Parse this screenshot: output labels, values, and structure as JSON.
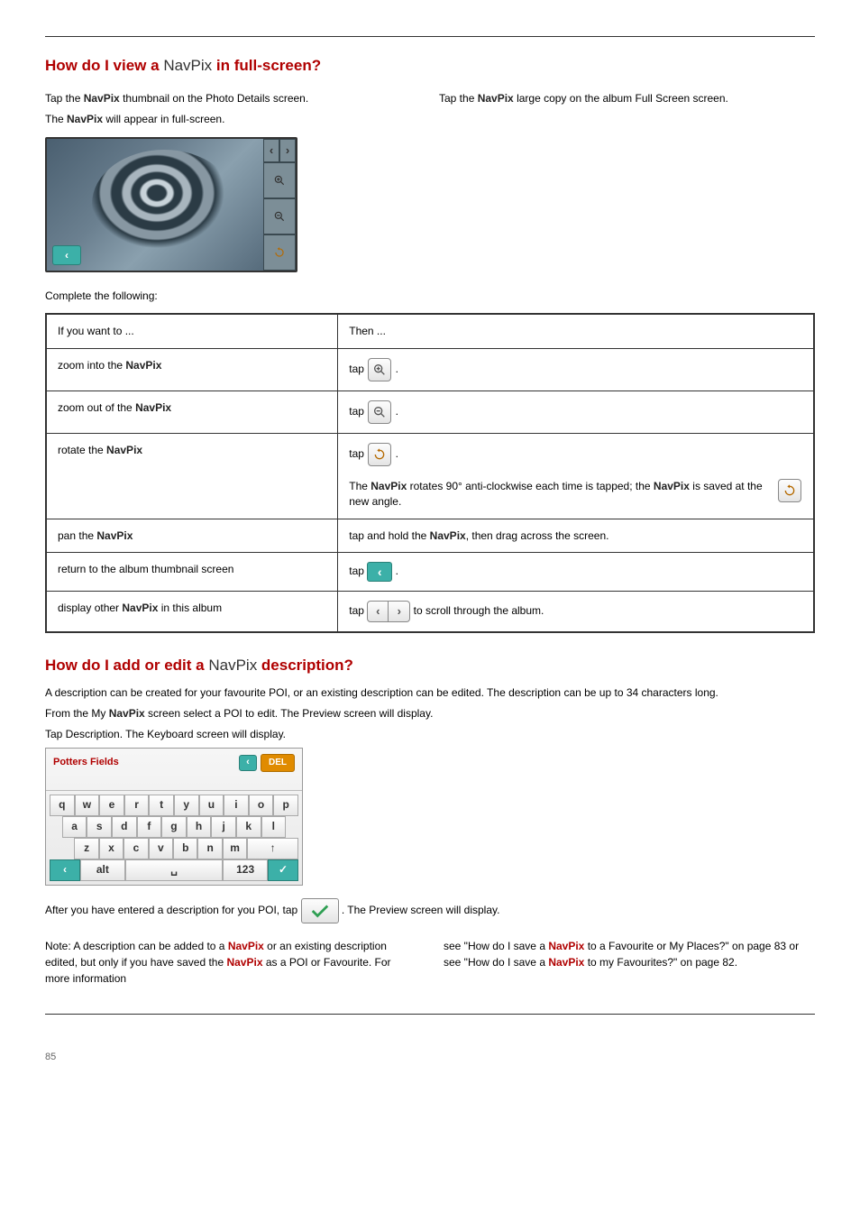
{
  "page_number": "85",
  "section1": {
    "heading_prefix": "How do I view a ",
    "heading_navpix": "NavPix",
    "heading_suffix": " in full-screen?",
    "intro_left_1a": "Tap the ",
    "intro_left_1b": " thumbnail on the Photo Details screen.",
    "intro_left_2a": "The ",
    "intro_left_2b": " will appear in full-screen.",
    "intro_right_1a": "Tap the ",
    "intro_right_1b": " large copy on the album Full Screen screen."
  },
  "table": {
    "header_left": "If you want to ...",
    "header_right": "Then ...",
    "rows": [
      {
        "left_pre": "zoom into the ",
        "left_np": "NavPix",
        "left_post": "",
        "right_pre": "tap ",
        "right_post": ".",
        "icon": "zoom-in"
      },
      {
        "left_pre": "zoom out of the ",
        "left_np": "NavPix",
        "left_post": "",
        "right_pre": "tap ",
        "right_post": ".",
        "icon": "zoom-out"
      },
      {
        "left_pre": "rotate the ",
        "left_np": "NavPix",
        "left_post": "",
        "right_pre": "tap ",
        "right_post": ".",
        "icon": "rotate",
        "extra_line_1a": "The ",
        "extra_line_1b": " rotates 90° anti-clockwise each time ",
        "extra_line_1c": " is tapped; the ",
        "extra_line_1d": " is saved at the new angle.",
        "extra_icon": "rotate"
      },
      {
        "left_pre": "pan the ",
        "left_np": "NavPix",
        "left_post": "",
        "right_text": "tap and hold the ",
        "right_text2": ", then drag across the screen.",
        "icon": "none"
      },
      {
        "left_pre": "return to the album thumbnail screen",
        "left_np": "",
        "left_post": "",
        "right_pre": "tap ",
        "right_post": ".",
        "icon": "back-green"
      },
      {
        "left_pre": "display other ",
        "left_np": "NavPix",
        "left_post": " in this album",
        "right_pre": "tap ",
        "right_post": " to scroll through the album.",
        "icon": "arrow-pair"
      }
    ]
  },
  "section2": {
    "heading_prefix": "How do I add or edit a ",
    "heading_navpix": "NavPix",
    "heading_suffix": " description?",
    "line1": "A description can be created for your favourite POI, or an existing description can be edited. The description can be up to 34 characters long.",
    "line2_a": "From the My ",
    "line2_b": " screen select a POI to edit. The Preview screen will display.",
    "line3": "Tap Description. The Keyboard screen will display.",
    "kb_title": "Potters Fields",
    "kb_del": "DEL",
    "line4_a": "After you have entered a description for you POI, tap ",
    "line4_b": ". The Preview screen will display.",
    "note_left_a": "Note: A description can be added to a ",
    "note_left_b": " or an existing description edited, but only if you have saved the ",
    "note_left_c": " as a POI or Favourite. For more information ",
    "note_right_a": "see \"How do I save a ",
    "note_right_b": " to a Favourite or My Places?\" on page 83 or see \"How do I save a ",
    "note_right_c": " to my Favourites?\" on page 82."
  },
  "keys": {
    "row1": [
      "q",
      "w",
      "e",
      "r",
      "t",
      "y",
      "u",
      "i",
      "o",
      "p"
    ],
    "row2": [
      "a",
      "s",
      "d",
      "f",
      "g",
      "h",
      "j",
      "k",
      "l"
    ],
    "row3": [
      "z",
      "x",
      "c",
      "v",
      "b",
      "n",
      "m"
    ],
    "alt": "alt",
    "num": "123",
    "shift": "↑",
    "space": "␣"
  }
}
